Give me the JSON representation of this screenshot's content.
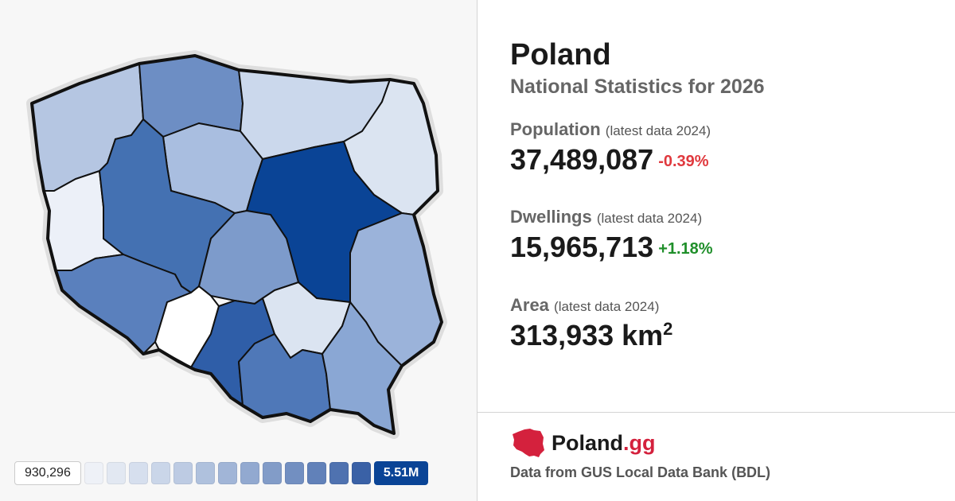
{
  "header": {
    "title": "Poland",
    "subtitle": "National Statistics for 2026"
  },
  "stats": {
    "population": {
      "label": "Population",
      "note": "(latest data 2024)",
      "value": "37,489,087",
      "change": "-0.39%"
    },
    "dwellings": {
      "label": "Dwellings",
      "note": "(latest data 2024)",
      "value": "15,965,713",
      "change": "+1.18%"
    },
    "area": {
      "label": "Area",
      "note": "(latest data 2024)",
      "value": "313,933 km",
      "unit_sup": "2"
    }
  },
  "brand": {
    "name": "Poland",
    "tld": ".gg",
    "icon": "poland-map-logo-icon"
  },
  "source": "Data from GUS Local Data Bank (BDL)",
  "legend": {
    "min_label": "930,296",
    "max_label": "5.51M",
    "colors": [
      "#eef1f7",
      "#e2e8f2",
      "#d6dfee",
      "#cad6e9",
      "#bdcbe3",
      "#afc1dd",
      "#a1b5d7",
      "#92a9d0",
      "#829cc8",
      "#728fc1",
      "#6181b9",
      "#4f72b0",
      "#3a61a6"
    ]
  },
  "colors": {
    "negative": "#e0393e",
    "positive": "#1f8f2a",
    "max": "#0a4496",
    "brand_red": "#d4213d"
  },
  "map": {
    "regions": [
      {
        "name": "west-pomeranian",
        "color": "#b5c6e2"
      },
      {
        "name": "pomeranian",
        "color": "#6d8ec4"
      },
      {
        "name": "warmian-masurian",
        "color": "#cbd8ec"
      },
      {
        "name": "podlaskie",
        "color": "#dbe4f1"
      },
      {
        "name": "kuyavian-pomeranian",
        "color": "#a9bee0"
      },
      {
        "name": "masovian",
        "color": "#0a4496"
      },
      {
        "name": "lubusz",
        "color": "#ecf0f8"
      },
      {
        "name": "greater-poland",
        "color": "#4471b2"
      },
      {
        "name": "lodz",
        "color": "#7d9bcb"
      },
      {
        "name": "lublin",
        "color": "#9bb3da"
      },
      {
        "name": "lower-silesian",
        "color": "#5a80bd"
      },
      {
        "name": "opole",
        "color": "#ffffff"
      },
      {
        "name": "silesian",
        "color": "#2f5ea8"
      },
      {
        "name": "swietokrzyskie",
        "color": "#dbe4f1"
      },
      {
        "name": "lesser-poland",
        "color": "#4f78b8"
      },
      {
        "name": "subcarpathian",
        "color": "#8aa7d4"
      }
    ]
  }
}
